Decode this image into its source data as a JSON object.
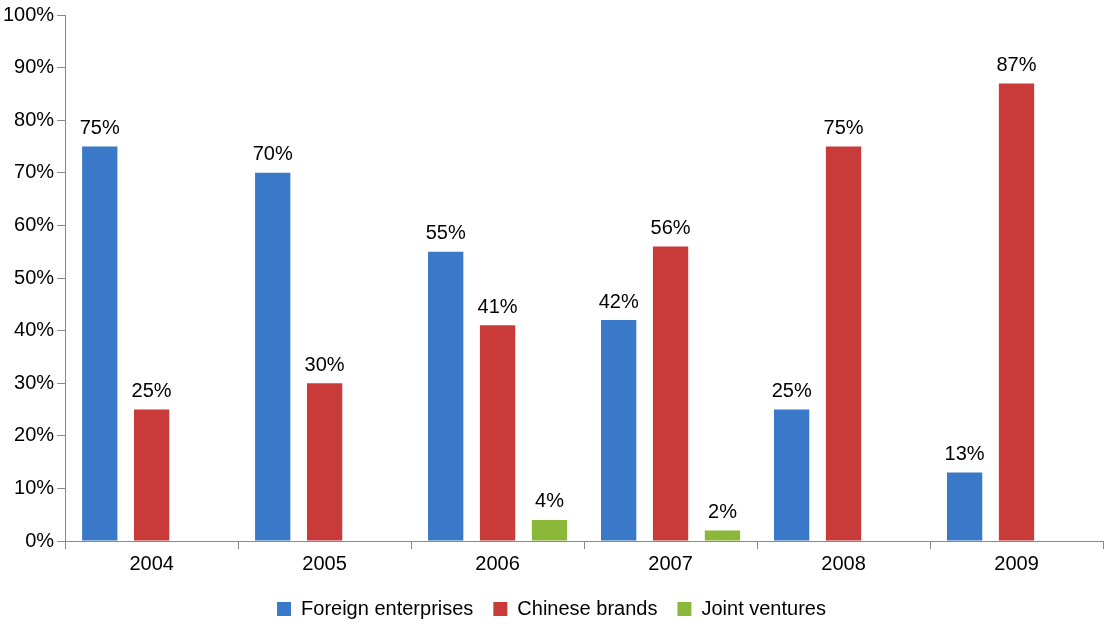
{
  "chart_data": {
    "type": "bar",
    "categories": [
      "2004",
      "2005",
      "2006",
      "2007",
      "2008",
      "2009"
    ],
    "series": [
      {
        "name": "Foreign enterprises",
        "color": "#3a78c8",
        "values": [
          75,
          70,
          55,
          42,
          25,
          13
        ],
        "value_labels": [
          "75%",
          "70%",
          "55%",
          "42%",
          "25%",
          "13%"
        ]
      },
      {
        "name": "Chinese brands",
        "color": "#c83b38",
        "values": [
          25,
          30,
          41,
          56,
          75,
          87
        ],
        "value_labels": [
          "25%",
          "30%",
          "41%",
          "56%",
          "75%",
          "87%"
        ]
      },
      {
        "name": "Joint ventures",
        "color": "#8cb83a",
        "values": [
          null,
          null,
          4,
          2,
          null,
          null
        ],
        "value_labels": [
          null,
          null,
          "4%",
          "2%",
          null,
          null
        ]
      }
    ],
    "ylim": [
      0,
      100
    ],
    "yticks": [
      {
        "value": 0,
        "label": "0%"
      },
      {
        "value": 10,
        "label": "10%"
      },
      {
        "value": 20,
        "label": "20%"
      },
      {
        "value": 30,
        "label": "30%"
      },
      {
        "value": 40,
        "label": "40%"
      },
      {
        "value": 50,
        "label": "50%"
      },
      {
        "value": 60,
        "label": "60%"
      },
      {
        "value": 70,
        "label": "70%"
      },
      {
        "value": 80,
        "label": "80%"
      },
      {
        "value": 90,
        "label": "90%"
      },
      {
        "value": 100,
        "label": "100%"
      }
    ],
    "legend": "bottom"
  }
}
